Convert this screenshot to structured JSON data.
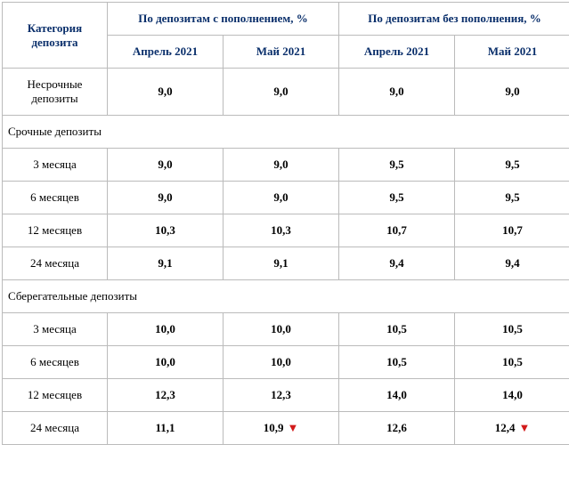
{
  "headers": {
    "category": "Категория депозита",
    "group_a": "По депозитам с пополнением, %",
    "group_b": "По депозитам без пополнения, %",
    "col_a1": "Апрель 2021",
    "col_a2": "Май 2021",
    "col_b1": "Апрель 2021",
    "col_b2": "Май 2021"
  },
  "rows": {
    "r0": {
      "label": "Несрочные депозиты",
      "a1": "9,0",
      "a2": "9,0",
      "b1": "9,0",
      "b2": "9,0"
    },
    "sec1": "Срочные депозиты",
    "r1": {
      "label": "3 месяца",
      "a1": "9,0",
      "a2": "9,0",
      "b1": "9,5",
      "b2": "9,5"
    },
    "r2": {
      "label": "6 месяцев",
      "a1": "9,0",
      "a2": "9,0",
      "b1": "9,5",
      "b2": "9,5"
    },
    "r3": {
      "label": "12 месяцев",
      "a1": "10,3",
      "a2": "10,3",
      "b1": "10,7",
      "b2": "10,7"
    },
    "r4": {
      "label": "24 месяца",
      "a1": "9,1",
      "a2": "9,1",
      "b1": "9,4",
      "b2": "9,4"
    },
    "sec2": "Сберегательные депозиты",
    "r5": {
      "label": "3 месяца",
      "a1": "10,0",
      "a2": "10,0",
      "b1": "10,5",
      "b2": "10,5"
    },
    "r6": {
      "label": "6 месяцев",
      "a1": "10,0",
      "a2": "10,0",
      "b1": "10,5",
      "b2": "10,5"
    },
    "r7": {
      "label": "12 месяцев",
      "a1": "12,3",
      "a2": "12,3",
      "b1": "14,0",
      "b2": "14,0"
    },
    "r8": {
      "label": "24 месяца",
      "a1": "11,1",
      "a2": "10,9",
      "b1": "12,6",
      "b2": "12,4"
    }
  },
  "marks": {
    "down": "▼"
  },
  "colors": {
    "header_text": "#0a2f6b",
    "border": "#bbbbbb",
    "triangle": "#d21a1a"
  }
}
